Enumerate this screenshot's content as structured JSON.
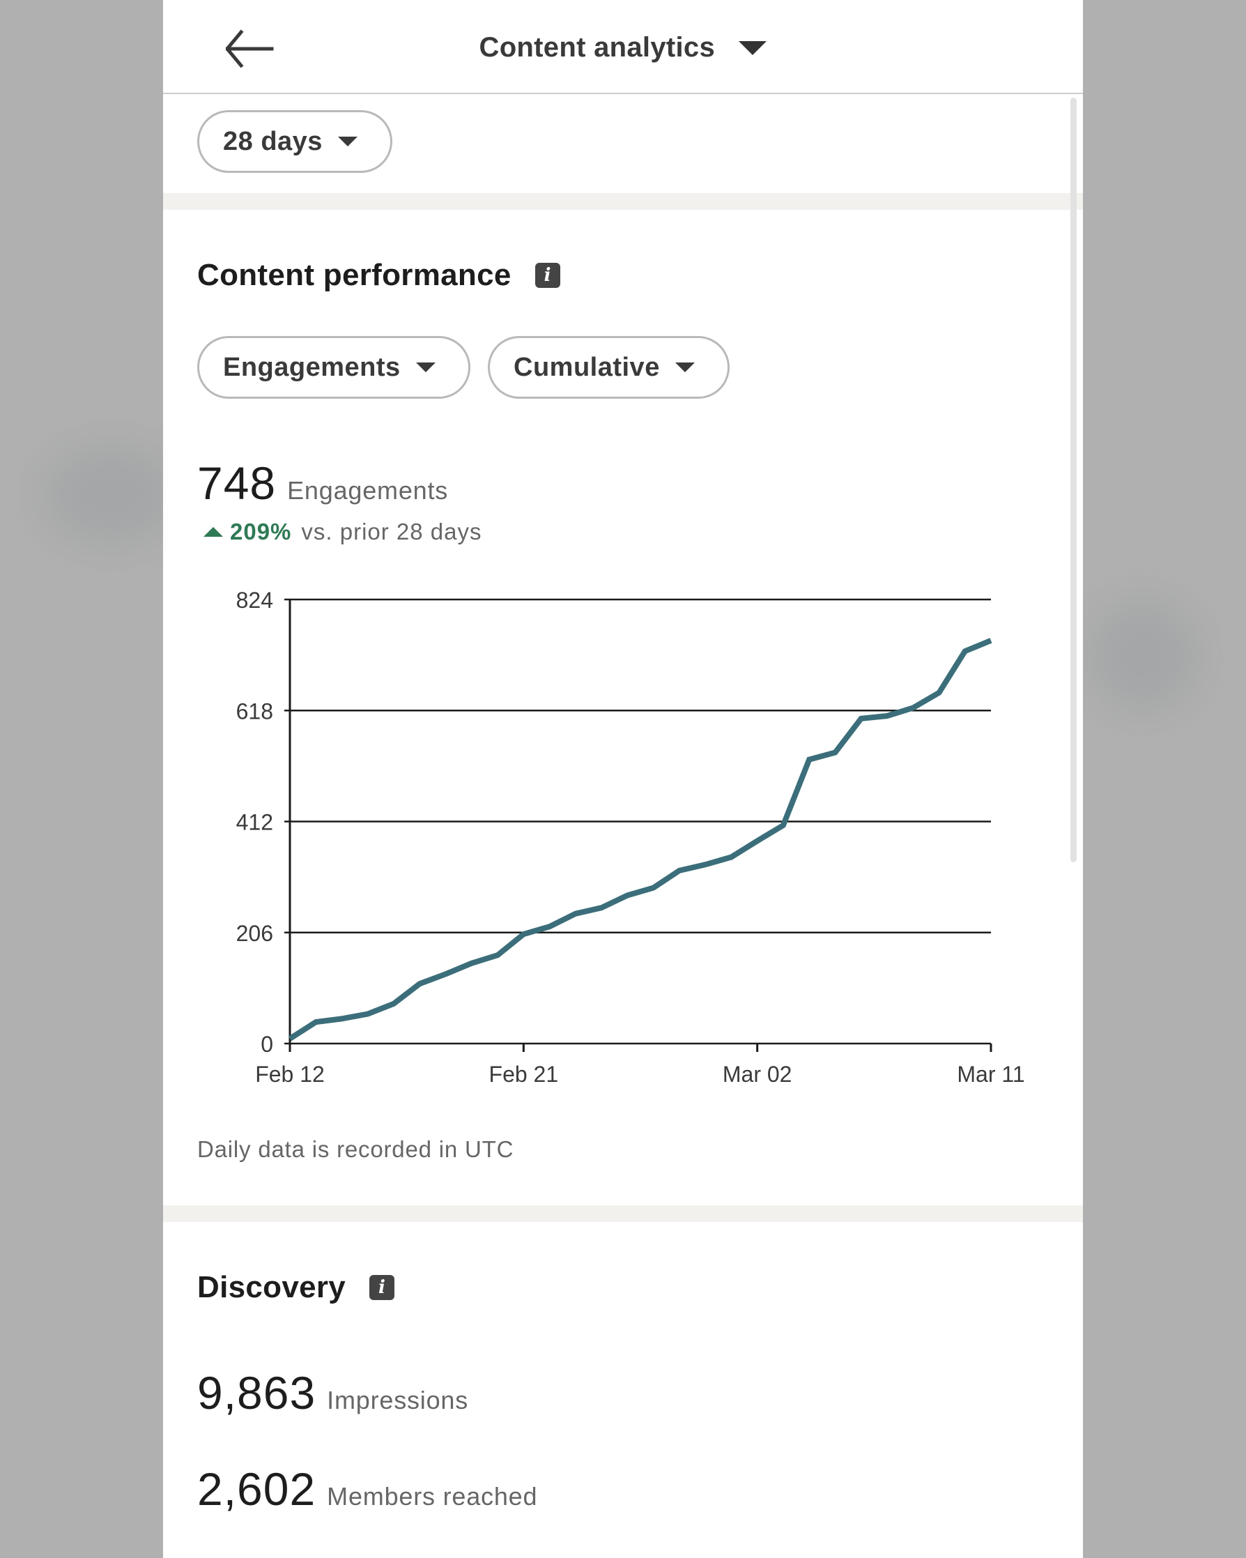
{
  "header": {
    "title": "Content analytics",
    "back_icon": "arrow-left-icon",
    "title_dropdown_icon": "caret-down-icon"
  },
  "filters": {
    "time_range": "28 days"
  },
  "content_performance": {
    "heading": "Content performance",
    "info_icon": "info-icon",
    "metric_dropdown": "Engagements",
    "mode_dropdown": "Cumulative",
    "total_value": "748",
    "total_label": "Engagements",
    "change_pct": "209%",
    "change_label": "vs. prior 28 days",
    "change_direction": "up",
    "footnote": "Daily data is recorded in UTC"
  },
  "discovery": {
    "heading": "Discovery",
    "info_icon": "info-icon",
    "impressions_value": "9,863",
    "impressions_label": "Impressions",
    "members_value": "2,602",
    "members_label": "Members reached"
  },
  "colors": {
    "line": "#3b6e7a",
    "positive": "#2f7a55",
    "band": "#f2f1ee"
  },
  "chart_data": {
    "type": "line",
    "title": "",
    "xlabel": "",
    "ylabel": "",
    "ylim": [
      0,
      824
    ],
    "yticks": [
      0,
      206,
      412,
      618,
      824
    ],
    "xtick_labels": [
      "Feb 12",
      "Feb 21",
      "Mar 02",
      "Mar 11"
    ],
    "grid": "horizontal",
    "legend": "none",
    "x": [
      "Feb 12",
      "Feb 13",
      "Feb 14",
      "Feb 15",
      "Feb 16",
      "Feb 17",
      "Feb 18",
      "Feb 19",
      "Feb 20",
      "Feb 21",
      "Feb 22",
      "Feb 23",
      "Feb 24",
      "Feb 25",
      "Feb 26",
      "Feb 27",
      "Feb 28",
      "Mar 01",
      "Mar 02",
      "Mar 03",
      "Mar 04",
      "Mar 05",
      "Mar 06",
      "Mar 07",
      "Mar 08",
      "Mar 09",
      "Mar 10",
      "Mar 11"
    ],
    "series": [
      {
        "name": "Engagements (cumulative)",
        "values": [
          9,
          40,
          46,
          55,
          74,
          111,
          129,
          149,
          164,
          203,
          217,
          241,
          252,
          275,
          289,
          321,
          332,
          346,
          376,
          405,
          527,
          540,
          603,
          608,
          623,
          651,
          728,
          748
        ]
      }
    ]
  }
}
